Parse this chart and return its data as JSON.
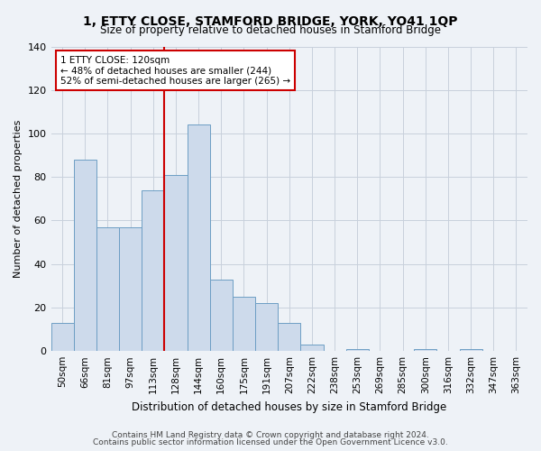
{
  "title": "1, ETTY CLOSE, STAMFORD BRIDGE, YORK, YO41 1QP",
  "subtitle": "Size of property relative to detached houses in Stamford Bridge",
  "xlabel": "Distribution of detached houses by size in Stamford Bridge",
  "ylabel": "Number of detached properties",
  "bar_labels": [
    "50sqm",
    "66sqm",
    "81sqm",
    "97sqm",
    "113sqm",
    "128sqm",
    "144sqm",
    "160sqm",
    "175sqm",
    "191sqm",
    "207sqm",
    "222sqm",
    "238sqm",
    "253sqm",
    "269sqm",
    "285sqm",
    "300sqm",
    "316sqm",
    "332sqm",
    "347sqm",
    "363sqm"
  ],
  "bar_values": [
    13,
    88,
    57,
    57,
    74,
    81,
    104,
    33,
    25,
    22,
    13,
    3,
    0,
    1,
    0,
    0,
    1,
    0,
    1,
    0,
    0
  ],
  "bar_color": "#cddaeb",
  "bar_edge_color": "#6d9ec4",
  "vline_color": "#cc0000",
  "annotation_text": "1 ETTY CLOSE: 120sqm\n← 48% of detached houses are smaller (244)\n52% of semi-detached houses are larger (265) →",
  "annotation_box_color": "white",
  "annotation_box_edge": "#cc0000",
  "ylim": [
    0,
    140
  ],
  "yticks": [
    0,
    20,
    40,
    60,
    80,
    100,
    120,
    140
  ],
  "grid_color": "#c8d0dc",
  "bg_color": "#eef2f7",
  "footer_line1": "Contains HM Land Registry data © Crown copyright and database right 2024.",
  "footer_line2": "Contains public sector information licensed under the Open Government Licence v3.0."
}
